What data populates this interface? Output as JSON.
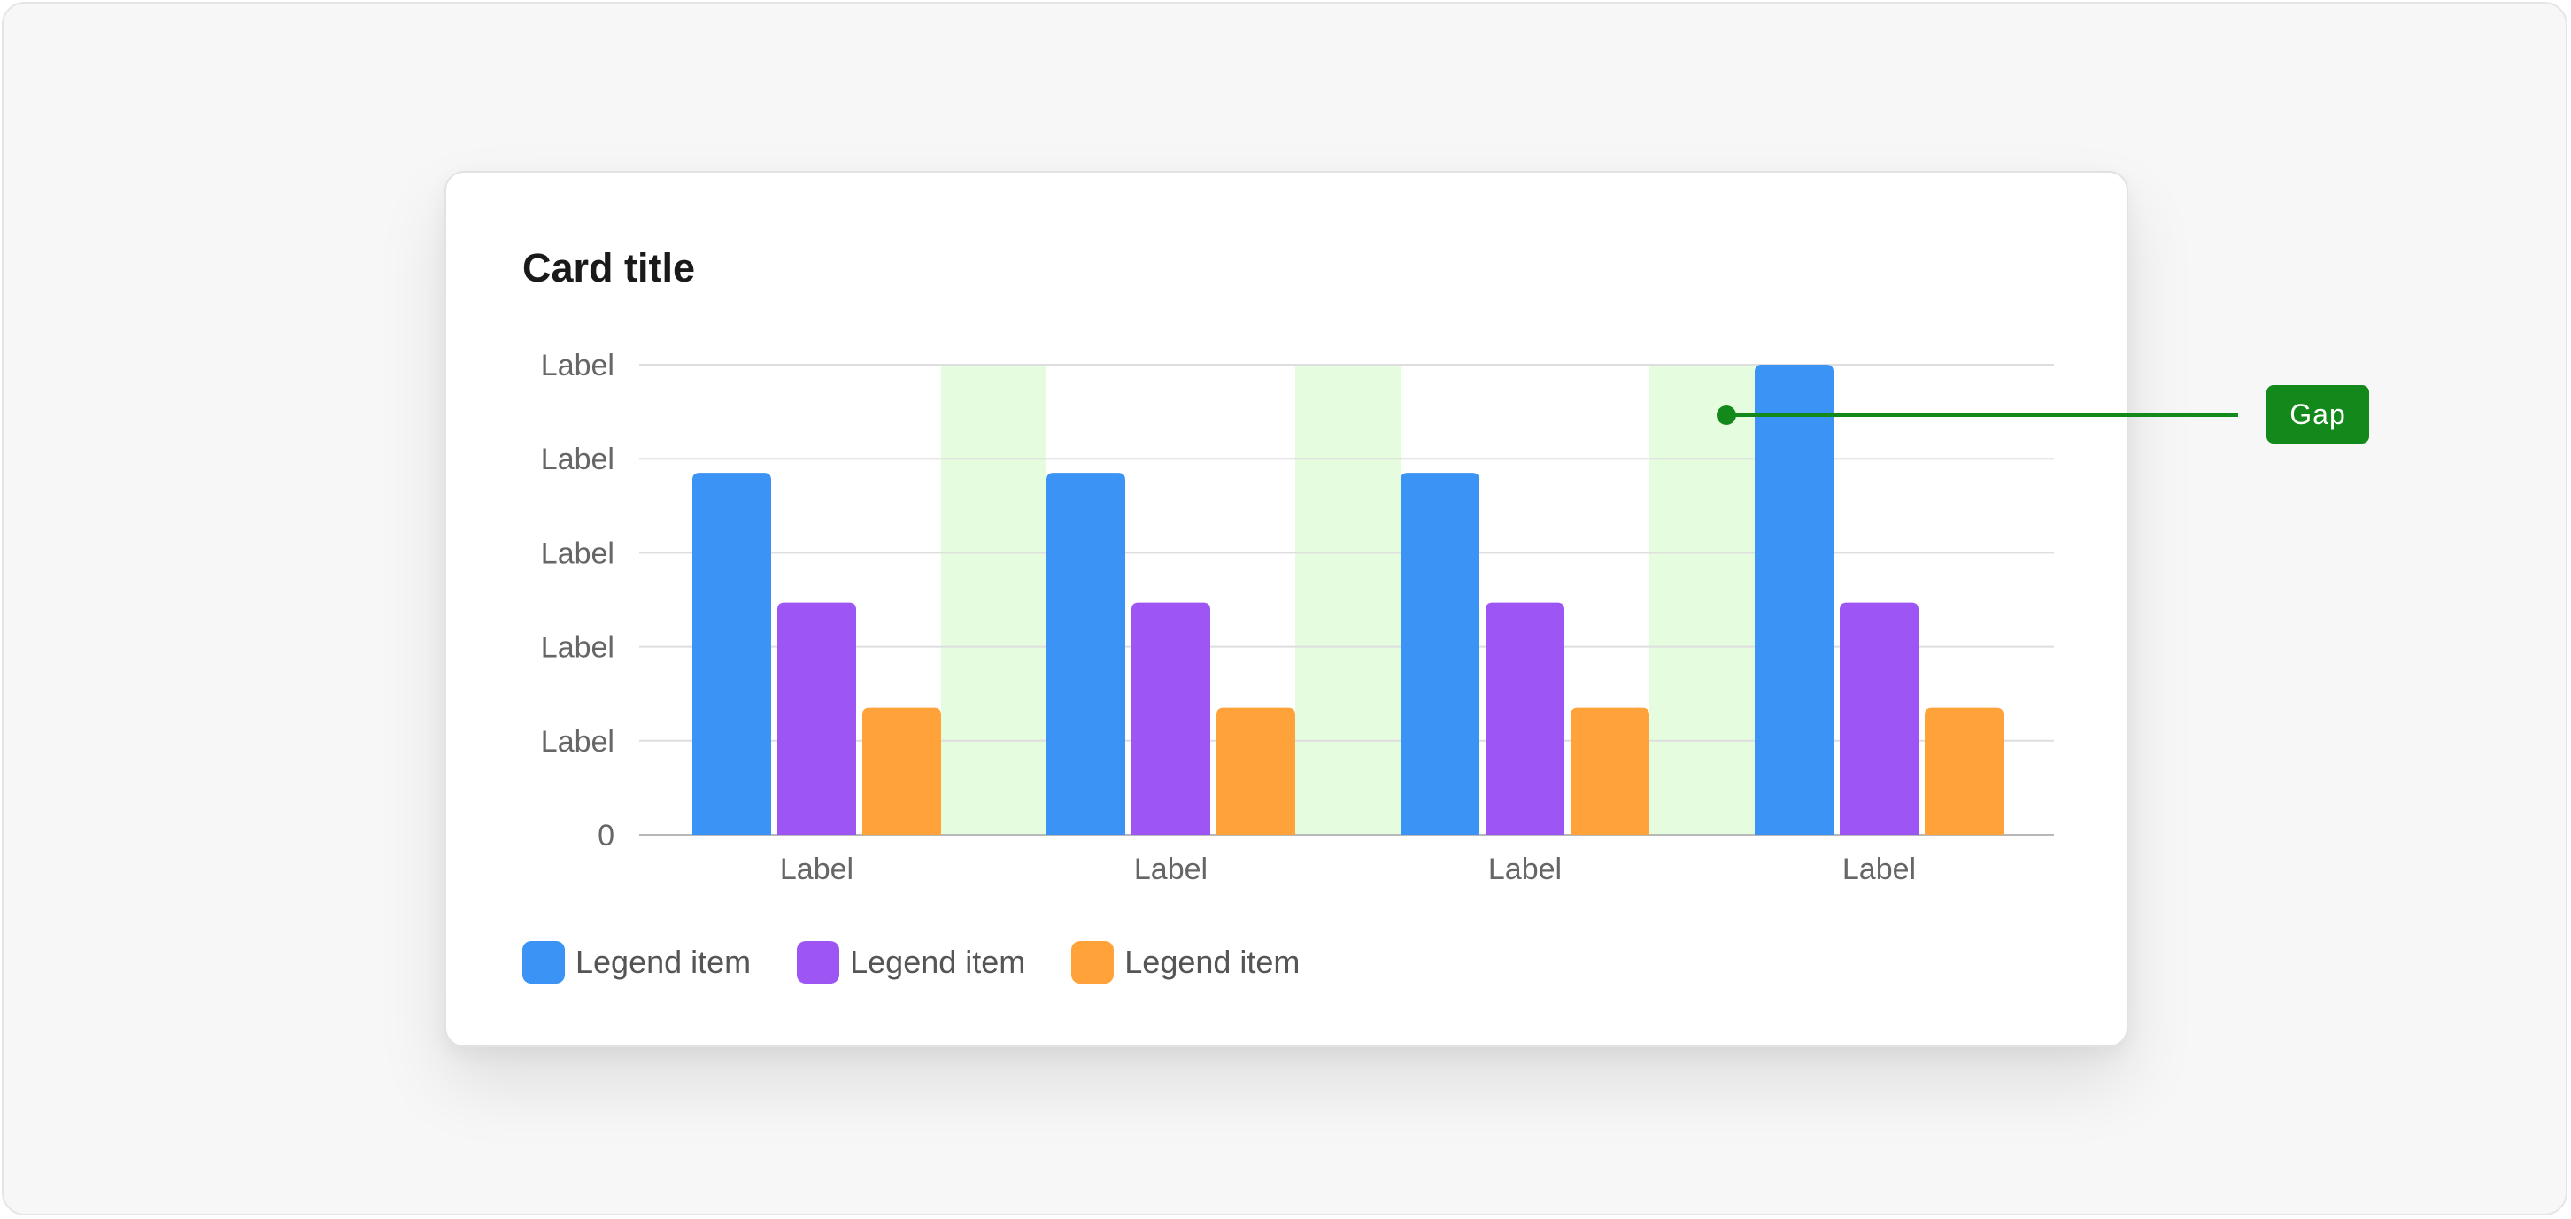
{
  "card": {
    "title": "Card title"
  },
  "annotation": {
    "label": "Gap",
    "color": "#12891a"
  },
  "colors": {
    "gap_highlight": "#e5fcdf"
  },
  "chart_data": {
    "type": "bar",
    "title": "Card title",
    "categories": [
      "Label",
      "Label",
      "Label",
      "Label"
    ],
    "y_tick_labels": [
      "0",
      "Label",
      "Label",
      "Label",
      "Label",
      "Label"
    ],
    "ylim": [
      0,
      5
    ],
    "grid": true,
    "legend_placement": "bottom-left",
    "series": [
      {
        "name": "Legend item",
        "color": "#3b93f5",
        "values": [
          3.85,
          3.85,
          3.85,
          5
        ]
      },
      {
        "name": "Legend item",
        "color": "#9d55f4",
        "values": [
          2.47,
          2.47,
          2.47,
          2.47
        ]
      },
      {
        "name": "Legend item",
        "color": "#ffa23a",
        "values": [
          1.35,
          1.35,
          1.35,
          1.35
        ]
      }
    ]
  }
}
